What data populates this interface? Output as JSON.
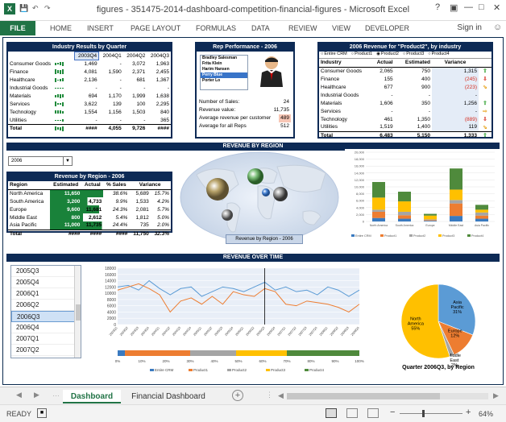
{
  "window": {
    "title": "figures - 351475-2014-dashboard-competition-financial-figures - Microsoft Excel",
    "sign_in": "Sign in"
  },
  "ribbon": {
    "file": "FILE",
    "tabs": [
      "HOME",
      "INSERT",
      "PAGE LAYOUT",
      "FORMULAS",
      "DATA",
      "REVIEW",
      "VIEW",
      "DEVELOPER"
    ]
  },
  "industry": {
    "title": "Industry Results by Quarter",
    "headers": [
      "2003Q4",
      "2004Q1",
      "2004Q2",
      "2004Q3"
    ],
    "rows": [
      {
        "name": "Consumer Goods",
        "v": [
          "1,469",
          "-",
          "3,072",
          "1,963"
        ]
      },
      {
        "name": "Finance",
        "v": [
          "4,081",
          "1,590",
          "2,371",
          "2,455"
        ]
      },
      {
        "name": "Healthcare",
        "v": [
          "2,136",
          "-",
          "681",
          "1,367"
        ]
      },
      {
        "name": "Industrial Goods",
        "v": [
          "-",
          "-",
          "-",
          "-"
        ]
      },
      {
        "name": "Materials",
        "v": [
          "694",
          "1,170",
          "1,999",
          "1,638"
        ]
      },
      {
        "name": "Services",
        "v": [
          "3,622",
          "139",
          "100",
          "2,295"
        ]
      },
      {
        "name": "Technology",
        "v": [
          "1,554",
          "1,156",
          "1,503",
          "840"
        ]
      },
      {
        "name": "Utilities",
        "v": [
          "-",
          "-",
          "-",
          "365"
        ]
      }
    ],
    "total": {
      "name": "Total",
      "v": [
        "####",
        "4,055",
        "9,726",
        "####"
      ]
    }
  },
  "rep": {
    "title": "Rep Performance - 2006",
    "names": [
      "Bradley Salesman",
      "Frita Klein",
      "Harim Hansen",
      "Perry Blue",
      "Porter Lo"
    ],
    "selected": 3,
    "stats": [
      {
        "label": "Number of Sales:",
        "value": "24"
      },
      {
        "label": "Revenue value:",
        "value": "11,735"
      },
      {
        "label": "Average revenue per customer",
        "value": "489"
      },
      {
        "label": "Average for all Reps",
        "value": "512"
      }
    ]
  },
  "revenue_product": {
    "title": "2006 Revenue for \"Product2\", by industry",
    "radios": [
      "Entire CRM",
      "Product1",
      "Product2",
      "Product3",
      "Product4"
    ],
    "selected_radio": 2,
    "headers": [
      "Industry",
      "Actual",
      "Estimated",
      "Variance"
    ],
    "rows": [
      {
        "name": "Consumer Goods",
        "a": "2,065",
        "e": "750",
        "v": "1,315",
        "neg": false,
        "dir": "up"
      },
      {
        "name": "Finance",
        "a": "155",
        "e": "400",
        "v": "(245)",
        "neg": true,
        "dir": "down"
      },
      {
        "name": "Healthcare",
        "a": "677",
        "e": "900",
        "v": "(223)",
        "neg": true,
        "dir": "diag"
      },
      {
        "name": "Industrial Goods",
        "a": "-",
        "e": "-",
        "v": "-",
        "neg": false,
        "dir": "none"
      },
      {
        "name": "Materials",
        "a": "1,606",
        "e": "350",
        "v": "1,256",
        "neg": false,
        "dir": "up"
      },
      {
        "name": "Services",
        "a": "-",
        "e": "-",
        "v": "-",
        "neg": false,
        "dir": "flat"
      },
      {
        "name": "Technology",
        "a": "461",
        "e": "1,350",
        "v": "(889)",
        "neg": true,
        "dir": "down"
      },
      {
        "name": "Utilities",
        "a": "1,519",
        "e": "1,400",
        "v": "119",
        "neg": false,
        "dir": "diag"
      }
    ],
    "total": {
      "name": "Total",
      "a": "6,483",
      "e": "5,150",
      "v": "1,333",
      "dir": "up"
    }
  },
  "region_band": "REVENUE  BY REGION",
  "year_select": "2006",
  "region_table": {
    "title": "Revenue by Region - 2006",
    "headers": [
      "Region",
      "Estimated",
      "Actual",
      "% Sales",
      "Variance"
    ],
    "rows": [
      {
        "name": "North America",
        "e": "11,650",
        "a": "",
        "p": "38.6%",
        "v": "5,689",
        "vp": "15.7%"
      },
      {
        "name": "South America",
        "e": "3,200",
        "a": "4,733",
        "p": "9.9%",
        "v": "1,533",
        "vp": "4.2%"
      },
      {
        "name": "Europe",
        "e": "9,600",
        "a": "11,681",
        "p": "24.3%",
        "v": "2,081",
        "vp": "5.7%"
      },
      {
        "name": "Middle East",
        "e": "800",
        "a": "2,612",
        "p": "5.4%",
        "v": "1,812",
        "vp": "5.0%"
      },
      {
        "name": "Asia Pacific",
        "e": "11,000",
        "a": "11,735",
        "p": "24.4%",
        "v": "735",
        "vp": "2.0%"
      }
    ],
    "total": {
      "name": "Total",
      "e": "####",
      "a": "####",
      "p": "####",
      "v": "11,750",
      "vp": "32.3%"
    }
  },
  "map_label": "Revenue by Region - 2006",
  "time_band": "REVENUE OVER TIME",
  "quarter_list": [
    "2005Q3",
    "2005Q4",
    "2006Q1",
    "2006Q2",
    "2006Q3",
    "2006Q4",
    "2007Q1",
    "2007Q2"
  ],
  "quarter_selected": 4,
  "pie_title": "Quarter 2006Q3, by Region",
  "colors": {
    "navy": "#0d2a55",
    "crm": "#3a7ac0",
    "p1": "#ed7d31",
    "p2": "#a5a5a5",
    "p3": "#ffc000",
    "p4": "#5b9bd5",
    "p5": "#4f8a3c"
  },
  "chart_data": [
    {
      "type": "bar",
      "title": "",
      "categories": [
        "Asia Pacific",
        "Europe",
        "Middle East",
        "North America",
        "South America"
      ],
      "series": [
        {
          "name": "Entire CRM",
          "values": [
            1000,
            800,
            200,
            1600,
            800
          ]
        },
        {
          "name": "Product1",
          "values": [
            1800,
            1000,
            200,
            3600,
            900
          ]
        },
        {
          "name": "Product2",
          "values": [
            600,
            1000,
            200,
            1000,
            900
          ]
        },
        {
          "name": "Product3",
          "values": [
            3500,
            3000,
            1100,
            3000,
            800
          ]
        },
        {
          "name": "Product4",
          "values": [
            4500,
            2800,
            500,
            6100,
            1400
          ]
        }
      ],
      "ylim": [
        0,
        20000
      ],
      "yticks": [
        "0",
        "2,000",
        "4,000",
        "6,000",
        "8,000",
        "10,000",
        "12,000",
        "14,000",
        "16,000",
        "18,000",
        "20,000"
      ],
      "xlabels": [
        "Entire CRM",
        "North America",
        "South America",
        "Europe",
        "Middle East",
        "Asia Pacific"
      ]
    },
    {
      "type": "line",
      "x": [
        "2003Q1",
        "2003Q2",
        "2003Q3",
        "2003Q4",
        "2004Q1",
        "2004Q2",
        "2004Q3",
        "2004Q4",
        "2005Q1",
        "2005Q2",
        "2005Q3",
        "2005Q4",
        "2006Q1",
        "2006Q2",
        "2006Q3",
        "2006Q4",
        "2007Q1",
        "2007Q2",
        "2007Q3",
        "2007Q4",
        "2008Q1",
        "2008Q2",
        "2008Q3",
        "2008Q4"
      ],
      "series": [
        {
          "name": "Actual",
          "values": [
            12000,
            12500,
            11000,
            14000,
            11500,
            9500,
            11500,
            12000,
            9000,
            10500,
            12000,
            11500,
            10500,
            12000,
            13500,
            11000,
            12000,
            10500,
            11000,
            9500,
            12000,
            11000,
            9000,
            11000
          ]
        },
        {
          "name": "Estimated",
          "values": [
            11000,
            12000,
            13000,
            11500,
            9500,
            4000,
            7500,
            8500,
            6500,
            9000,
            6500,
            10500,
            9500,
            9000,
            11500,
            10500,
            6500,
            6000,
            7500,
            7000,
            6500,
            5500,
            4000,
            6500
          ]
        }
      ],
      "ylim": [
        0,
        18000
      ],
      "yticks": [
        "0",
        "2000",
        "4000",
        "6000",
        "8000",
        "10000",
        "12000",
        "14000",
        "16000",
        "18000"
      ],
      "marker_quarter": "2006Q3"
    },
    {
      "type": "bar",
      "stacked_percent": true,
      "categories": [
        "2006Q3"
      ],
      "series": [
        {
          "name": "Entire CRM",
          "values": [
            3
          ]
        },
        {
          "name": "Product1",
          "values": [
            27
          ]
        },
        {
          "name": "Product2",
          "values": [
            19
          ]
        },
        {
          "name": "Product3",
          "values": [
            21
          ]
        },
        {
          "name": "Product4",
          "values": [
            30
          ]
        }
      ],
      "xticks": [
        "0%",
        "10%",
        "20%",
        "30%",
        "40%",
        "50%",
        "60%",
        "70%",
        "80%",
        "90%",
        "100%"
      ]
    },
    {
      "type": "pie",
      "title": "Quarter 2006Q3, by Region",
      "slices": [
        {
          "label": "Asia Pacific",
          "value": 31,
          "pct": "31%"
        },
        {
          "label": "Europe",
          "value": 12,
          "pct": "12%"
        },
        {
          "label": "Middle East",
          "value": 2,
          "pct": "2%"
        },
        {
          "label": "North America",
          "value": 55,
          "pct": "55%"
        }
      ]
    }
  ],
  "sheet_tabs": [
    "Dashboard",
    "Financial Dashboard"
  ],
  "status": {
    "ready": "READY",
    "zoom": "64%"
  }
}
